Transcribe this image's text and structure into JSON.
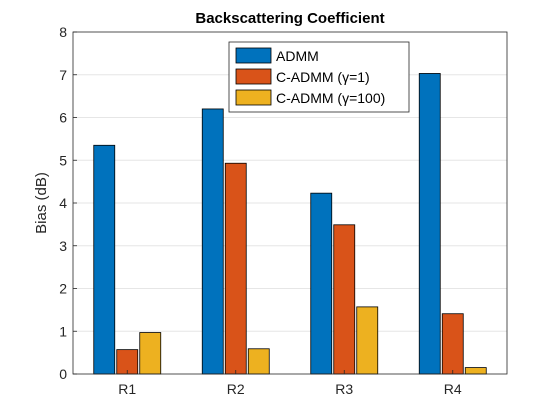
{
  "chart_data": {
    "type": "bar",
    "title": "Backscattering Coefficient",
    "xlabel": "",
    "ylabel": "Bias (dB)",
    "categories": [
      "R1",
      "R2",
      "R3",
      "R4"
    ],
    "ylim": [
      0,
      8
    ],
    "yticks": [
      0,
      1,
      2,
      3,
      4,
      5,
      6,
      7,
      8
    ],
    "grid": "y-major",
    "legend_position": "top-center",
    "series": [
      {
        "name": "ADMM",
        "color": "#0072BD",
        "values": [
          5.35,
          6.2,
          4.23,
          7.03
        ]
      },
      {
        "name": "C-ADMM (γ=1)",
        "color": "#D95319",
        "values": [
          0.57,
          4.93,
          3.49,
          1.41
        ]
      },
      {
        "name": "C-ADMM (γ=100)",
        "color": "#EDB120",
        "values": [
          0.97,
          0.59,
          1.57,
          0.15
        ]
      }
    ]
  }
}
